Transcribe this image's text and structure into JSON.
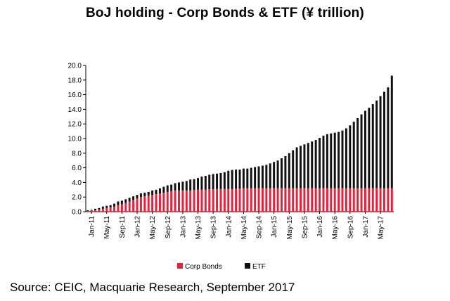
{
  "chart_data": {
    "type": "bar",
    "stacked": true,
    "title": "BoJ holding - Corp Bonds & ETF (¥ trillion)",
    "source": "Source: CEIC, Macquarie Research, September 2017",
    "ylim": [
      0,
      20
    ],
    "yticks": [
      "0.0",
      "2.0",
      "4.0",
      "6.0",
      "8.0",
      "10.0",
      "12.0",
      "14.0",
      "16.0",
      "18.0",
      "20.0"
    ],
    "xtick_labels": [
      "Jan-11",
      "May-11",
      "Sep-11",
      "Jan-12",
      "May-12",
      "Sep-12",
      "Jan-13",
      "May-13",
      "Sep-13",
      "Jan-14",
      "May-14",
      "Sep-14",
      "Jan-15",
      "May-15",
      "Sep-15",
      "Jan-16",
      "May-16",
      "Sep-16",
      "Jan-17",
      "May-17"
    ],
    "legend_position": "bottom",
    "grid": false,
    "colors": {
      "corp_bonds": "#e8213a",
      "etf": "#111111"
    },
    "categories": [
      "Dec-10",
      "Jan-11",
      "Feb-11",
      "Mar-11",
      "Apr-11",
      "May-11",
      "Jun-11",
      "Jul-11",
      "Aug-11",
      "Sep-11",
      "Oct-11",
      "Nov-11",
      "Dec-11",
      "Jan-12",
      "Feb-12",
      "Mar-12",
      "Apr-12",
      "May-12",
      "Jun-12",
      "Jul-12",
      "Aug-12",
      "Sep-12",
      "Oct-12",
      "Nov-12",
      "Dec-12",
      "Jan-13",
      "Feb-13",
      "Mar-13",
      "Apr-13",
      "May-13",
      "Jun-13",
      "Jul-13",
      "Aug-13",
      "Sep-13",
      "Oct-13",
      "Nov-13",
      "Dec-13",
      "Jan-14",
      "Feb-14",
      "Mar-14",
      "Apr-14",
      "May-14",
      "Jun-14",
      "Jul-14",
      "Aug-14",
      "Sep-14",
      "Oct-14",
      "Nov-14",
      "Dec-14",
      "Jan-15",
      "Feb-15",
      "Mar-15",
      "Apr-15",
      "May-15",
      "Jun-15",
      "Jul-15",
      "Aug-15",
      "Sep-15",
      "Oct-15",
      "Nov-15",
      "Dec-15",
      "Jan-16",
      "Feb-16",
      "Mar-16",
      "Apr-16",
      "May-16",
      "Jun-16",
      "Jul-16",
      "Aug-16",
      "Sep-16",
      "Oct-16",
      "Nov-16",
      "Dec-16",
      "Jan-17",
      "Feb-17",
      "Mar-17",
      "Apr-17",
      "May-17",
      "Jun-17",
      "Jul-17",
      "Aug-17"
    ],
    "series": [
      {
        "name": "Corp Bonds",
        "values": [
          0.1,
          0.15,
          0.2,
          0.3,
          0.4,
          0.5,
          0.6,
          0.7,
          0.9,
          1.0,
          1.2,
          1.4,
          1.6,
          1.8,
          2.0,
          2.1,
          2.2,
          2.3,
          2.4,
          2.5,
          2.6,
          2.7,
          2.8,
          2.9,
          2.9,
          2.9,
          2.9,
          2.9,
          2.95,
          3.0,
          3.0,
          3.0,
          3.05,
          3.05,
          3.1,
          3.1,
          3.1,
          3.1,
          3.1,
          3.15,
          3.15,
          3.2,
          3.2,
          3.2,
          3.2,
          3.2,
          3.2,
          3.2,
          3.2,
          3.2,
          3.2,
          3.2,
          3.2,
          3.2,
          3.2,
          3.2,
          3.2,
          3.2,
          3.2,
          3.2,
          3.2,
          3.2,
          3.2,
          3.2,
          3.2,
          3.2,
          3.2,
          3.2,
          3.2,
          3.2,
          3.2,
          3.2,
          3.2,
          3.2,
          3.2,
          3.2,
          3.2,
          3.2,
          3.2,
          3.2,
          3.2
        ]
      },
      {
        "name": "ETF",
        "values": [
          0.1,
          0.1,
          0.2,
          0.2,
          0.3,
          0.3,
          0.3,
          0.4,
          0.5,
          0.5,
          0.5,
          0.5,
          0.5,
          0.5,
          0.5,
          0.5,
          0.5,
          0.6,
          0.6,
          0.7,
          0.8,
          0.9,
          0.9,
          1.0,
          1.1,
          1.2,
          1.3,
          1.5,
          1.5,
          1.6,
          1.8,
          1.9,
          2.0,
          2.1,
          2.1,
          2.2,
          2.3,
          2.5,
          2.6,
          2.6,
          2.6,
          2.7,
          2.7,
          2.8,
          2.9,
          3.0,
          3.1,
          3.2,
          3.4,
          3.6,
          3.8,
          4.1,
          4.4,
          4.8,
          5.2,
          5.6,
          5.8,
          6.0,
          6.2,
          6.4,
          6.6,
          6.9,
          7.2,
          7.4,
          7.5,
          7.6,
          7.7,
          7.9,
          8.2,
          8.6,
          9.1,
          9.6,
          10.1,
          10.6,
          11.0,
          11.5,
          12.0,
          12.6,
          13.2,
          13.8,
          15.4
        ]
      }
    ]
  }
}
